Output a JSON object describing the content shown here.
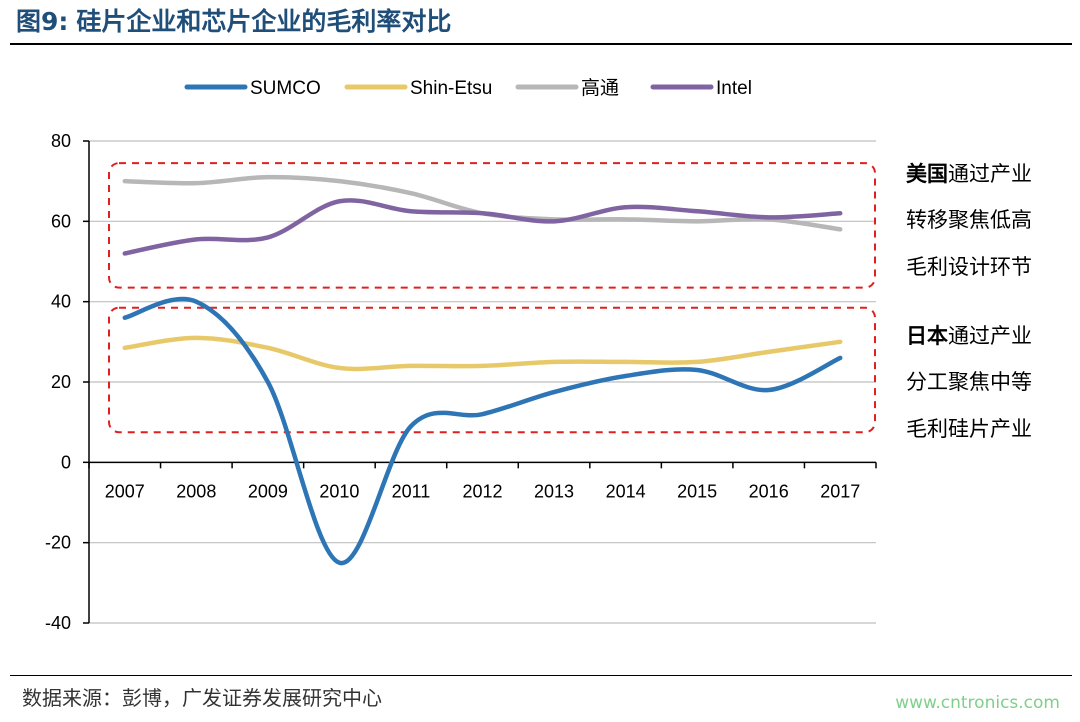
{
  "figure": {
    "label": "图9:",
    "title": "硅片企业和芯片企业的毛利率对比"
  },
  "chart_data": {
    "type": "line",
    "title": "硅片企业和芯片企业的毛利率对比",
    "xlabel": "",
    "ylabel": "",
    "categories": [
      "2007",
      "2008",
      "2009",
      "2010",
      "2011",
      "2012",
      "2013",
      "2014",
      "2015",
      "2016",
      "2017"
    ],
    "ylim": [
      -40,
      80
    ],
    "yticks": [
      "80",
      "60",
      "40",
      "20",
      "0",
      "-20",
      "-40"
    ],
    "grid": true,
    "legend_position": "top",
    "series": [
      {
        "name": "SUMCO",
        "color": "#2e75b6",
        "values": [
          36,
          40,
          20,
          -25,
          9,
          12,
          17.5,
          21.5,
          23,
          18,
          26
        ]
      },
      {
        "name": "Shin-Etsu",
        "color": "#e8c96a",
        "values": [
          28.5,
          31,
          28.5,
          23.5,
          24,
          24,
          25,
          25,
          25,
          27.5,
          30
        ]
      },
      {
        "name": "高通",
        "color": "#b7b7b7",
        "values": [
          70,
          69.5,
          71,
          70,
          67,
          62,
          60.5,
          60.5,
          60,
          60.5,
          58
        ]
      },
      {
        "name": "Intel",
        "color": "#8064a2",
        "values": [
          52,
          55.5,
          56,
          65,
          62.5,
          62,
          60,
          63.5,
          62.5,
          61,
          62
        ]
      }
    ],
    "annotations": [
      {
        "group": "us",
        "bold": "美国",
        "rest": "通过产业",
        "line2": "转移聚焦低高",
        "line3": "毛利设计环节",
        "y_range": [
          43.5,
          74.5
        ]
      },
      {
        "group": "jp",
        "bold": "日本",
        "rest": "通过产业",
        "line2": "分工聚焦中等",
        "line3": "毛利硅片产业",
        "y_range": [
          7.5,
          38.5
        ]
      }
    ]
  },
  "footer": {
    "source": "数据来源：彭博，广发证券发展研究中心",
    "watermark": "www.cntronics.com"
  },
  "colors": {
    "title": "#1f4e79",
    "dashed_box": "#e02020",
    "grid": "#bfbfbf"
  }
}
